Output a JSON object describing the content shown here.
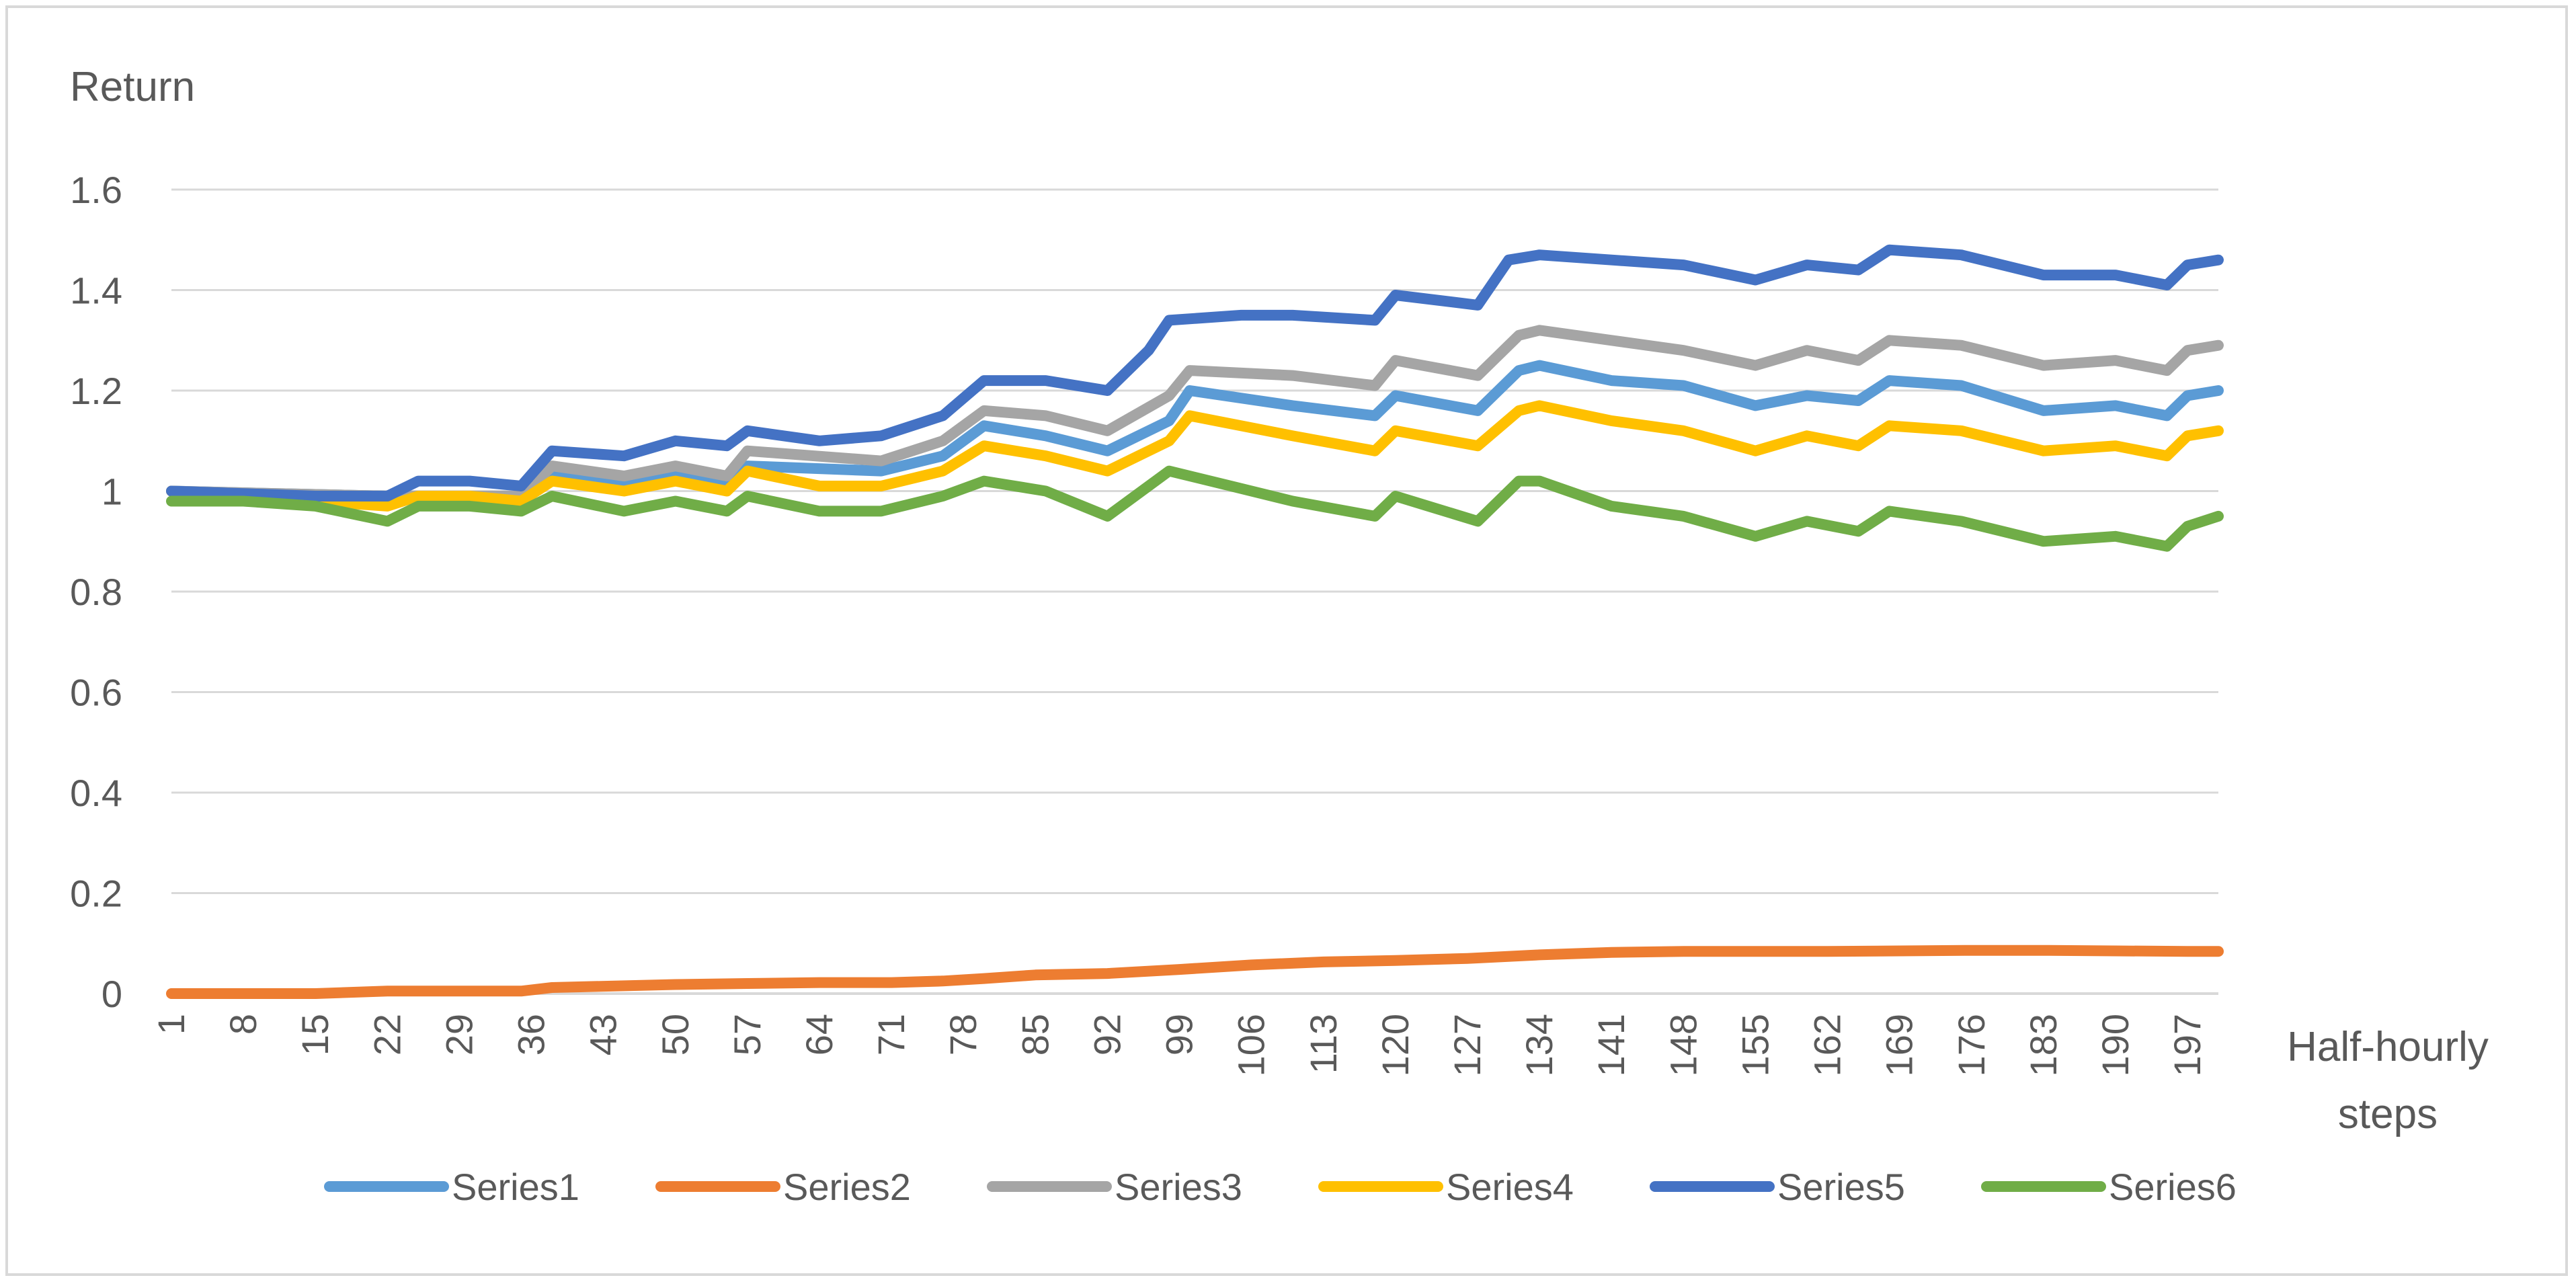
{
  "chart_data": {
    "type": "line",
    "title": "",
    "ylabel": "Return",
    "xlabel": "Half-hourly steps",
    "ylim": [
      0,
      1.6
    ],
    "yticks": [
      "0",
      "0.2",
      "0.4",
      "0.6",
      "0.8",
      "1",
      "1.2",
      "1.4",
      "1.6"
    ],
    "xticks": [
      "1",
      "8",
      "15",
      "22",
      "29",
      "36",
      "43",
      "50",
      "57",
      "64",
      "71",
      "78",
      "85",
      "92",
      "99",
      "106",
      "113",
      "120",
      "127",
      "134",
      "141",
      "148",
      "155",
      "162",
      "169",
      "176",
      "183",
      "190",
      "197"
    ],
    "xlim": [
      1,
      200
    ],
    "grid": true,
    "legend_position": "bottom",
    "series": [
      {
        "name": "Series1",
        "color": "#5b9bd5",
        "points": [
          [
            1,
            1.0
          ],
          [
            22,
            0.99
          ],
          [
            30,
            0.99
          ],
          [
            35,
            0.99
          ],
          [
            38,
            1.03
          ],
          [
            45,
            1.02
          ],
          [
            50,
            1.03
          ],
          [
            55,
            1.02
          ],
          [
            57,
            1.05
          ],
          [
            70,
            1.04
          ],
          [
            76,
            1.07
          ],
          [
            80,
            1.13
          ],
          [
            86,
            1.11
          ],
          [
            92,
            1.08
          ],
          [
            98,
            1.14
          ],
          [
            100,
            1.2
          ],
          [
            110,
            1.17
          ],
          [
            118,
            1.15
          ],
          [
            120,
            1.19
          ],
          [
            128,
            1.16
          ],
          [
            132,
            1.24
          ],
          [
            134,
            1.25
          ],
          [
            141,
            1.22
          ],
          [
            148,
            1.21
          ],
          [
            155,
            1.17
          ],
          [
            160,
            1.19
          ],
          [
            165,
            1.18
          ],
          [
            168,
            1.22
          ],
          [
            175,
            1.21
          ],
          [
            183,
            1.16
          ],
          [
            190,
            1.17
          ],
          [
            195,
            1.15
          ],
          [
            197,
            1.19
          ],
          [
            200,
            1.2
          ]
        ]
      },
      {
        "name": "Series2",
        "color": "#ed7d31",
        "points": [
          [
            1,
            0.0
          ],
          [
            15,
            0.0
          ],
          [
            22,
            0.005
          ],
          [
            35,
            0.005
          ],
          [
            38,
            0.012
          ],
          [
            50,
            0.018
          ],
          [
            57,
            0.02
          ],
          [
            64,
            0.022
          ],
          [
            71,
            0.022
          ],
          [
            76,
            0.025
          ],
          [
            80,
            0.03
          ],
          [
            85,
            0.037
          ],
          [
            92,
            0.04
          ],
          [
            99,
            0.048
          ],
          [
            106,
            0.057
          ],
          [
            113,
            0.063
          ],
          [
            120,
            0.066
          ],
          [
            127,
            0.07
          ],
          [
            134,
            0.077
          ],
          [
            141,
            0.082
          ],
          [
            148,
            0.084
          ],
          [
            155,
            0.084
          ],
          [
            162,
            0.084
          ],
          [
            169,
            0.085
          ],
          [
            176,
            0.086
          ],
          [
            183,
            0.086
          ],
          [
            190,
            0.085
          ],
          [
            197,
            0.084
          ],
          [
            200,
            0.084
          ]
        ]
      },
      {
        "name": "Series3",
        "color": "#a5a5a5",
        "points": [
          [
            1,
            1.0
          ],
          [
            22,
            0.99
          ],
          [
            30,
            0.99
          ],
          [
            35,
            0.99
          ],
          [
            38,
            1.05
          ],
          [
            45,
            1.03
          ],
          [
            50,
            1.05
          ],
          [
            55,
            1.03
          ],
          [
            57,
            1.08
          ],
          [
            70,
            1.06
          ],
          [
            76,
            1.1
          ],
          [
            80,
            1.16
          ],
          [
            86,
            1.15
          ],
          [
            92,
            1.12
          ],
          [
            98,
            1.19
          ],
          [
            100,
            1.24
          ],
          [
            110,
            1.23
          ],
          [
            118,
            1.21
          ],
          [
            120,
            1.26
          ],
          [
            128,
            1.23
          ],
          [
            132,
            1.31
          ],
          [
            134,
            1.32
          ],
          [
            141,
            1.3
          ],
          [
            148,
            1.28
          ],
          [
            155,
            1.25
          ],
          [
            160,
            1.28
          ],
          [
            165,
            1.26
          ],
          [
            168,
            1.3
          ],
          [
            175,
            1.29
          ],
          [
            183,
            1.25
          ],
          [
            190,
            1.26
          ],
          [
            195,
            1.24
          ],
          [
            197,
            1.28
          ],
          [
            200,
            1.29
          ]
        ]
      },
      {
        "name": "Series4",
        "color": "#ffc000",
        "points": [
          [
            1,
            1.0
          ],
          [
            22,
            0.97
          ],
          [
            25,
            0.99
          ],
          [
            30,
            0.99
          ],
          [
            35,
            0.98
          ],
          [
            38,
            1.02
          ],
          [
            45,
            1.0
          ],
          [
            50,
            1.02
          ],
          [
            55,
            1.0
          ],
          [
            57,
            1.04
          ],
          [
            64,
            1.01
          ],
          [
            70,
            1.01
          ],
          [
            76,
            1.04
          ],
          [
            80,
            1.09
          ],
          [
            86,
            1.07
          ],
          [
            92,
            1.04
          ],
          [
            98,
            1.1
          ],
          [
            100,
            1.15
          ],
          [
            110,
            1.11
          ],
          [
            118,
            1.08
          ],
          [
            120,
            1.12
          ],
          [
            128,
            1.09
          ],
          [
            132,
            1.16
          ],
          [
            134,
            1.17
          ],
          [
            141,
            1.14
          ],
          [
            148,
            1.12
          ],
          [
            155,
            1.08
          ],
          [
            160,
            1.11
          ],
          [
            165,
            1.09
          ],
          [
            168,
            1.13
          ],
          [
            175,
            1.12
          ],
          [
            183,
            1.08
          ],
          [
            190,
            1.09
          ],
          [
            195,
            1.07
          ],
          [
            197,
            1.11
          ],
          [
            200,
            1.12
          ]
        ]
      },
      {
        "name": "Series5",
        "color": "#4472c4",
        "points": [
          [
            1,
            1.0
          ],
          [
            15,
            0.99
          ],
          [
            22,
            0.99
          ],
          [
            25,
            1.02
          ],
          [
            30,
            1.02
          ],
          [
            35,
            1.01
          ],
          [
            38,
            1.08
          ],
          [
            45,
            1.07
          ],
          [
            50,
            1.1
          ],
          [
            55,
            1.09
          ],
          [
            57,
            1.12
          ],
          [
            64,
            1.1
          ],
          [
            70,
            1.11
          ],
          [
            76,
            1.15
          ],
          [
            80,
            1.22
          ],
          [
            86,
            1.22
          ],
          [
            92,
            1.2
          ],
          [
            96,
            1.28
          ],
          [
            98,
            1.34
          ],
          [
            105,
            1.35
          ],
          [
            110,
            1.35
          ],
          [
            118,
            1.34
          ],
          [
            120,
            1.39
          ],
          [
            128,
            1.37
          ],
          [
            131,
            1.46
          ],
          [
            134,
            1.47
          ],
          [
            141,
            1.46
          ],
          [
            148,
            1.45
          ],
          [
            155,
            1.42
          ],
          [
            160,
            1.45
          ],
          [
            165,
            1.44
          ],
          [
            168,
            1.48
          ],
          [
            175,
            1.47
          ],
          [
            183,
            1.43
          ],
          [
            190,
            1.43
          ],
          [
            195,
            1.41
          ],
          [
            197,
            1.45
          ],
          [
            200,
            1.46
          ]
        ]
      },
      {
        "name": "Series6",
        "color": "#70ad47",
        "points": [
          [
            1,
            0.98
          ],
          [
            8,
            0.98
          ],
          [
            15,
            0.97
          ],
          [
            22,
            0.94
          ],
          [
            25,
            0.97
          ],
          [
            30,
            0.97
          ],
          [
            35,
            0.96
          ],
          [
            38,
            0.99
          ],
          [
            45,
            0.96
          ],
          [
            50,
            0.98
          ],
          [
            55,
            0.96
          ],
          [
            57,
            0.99
          ],
          [
            64,
            0.96
          ],
          [
            70,
            0.96
          ],
          [
            76,
            0.99
          ],
          [
            80,
            1.02
          ],
          [
            86,
            1.0
          ],
          [
            92,
            0.95
          ],
          [
            94,
            0.98
          ],
          [
            98,
            1.04
          ],
          [
            104,
            1.01
          ],
          [
            110,
            0.98
          ],
          [
            118,
            0.95
          ],
          [
            120,
            0.99
          ],
          [
            128,
            0.94
          ],
          [
            132,
            1.02
          ],
          [
            134,
            1.02
          ],
          [
            141,
            0.97
          ],
          [
            148,
            0.95
          ],
          [
            155,
            0.91
          ],
          [
            160,
            0.94
          ],
          [
            165,
            0.92
          ],
          [
            168,
            0.96
          ],
          [
            175,
            0.94
          ],
          [
            183,
            0.9
          ],
          [
            190,
            0.91
          ],
          [
            195,
            0.89
          ],
          [
            197,
            0.93
          ],
          [
            200,
            0.95
          ]
        ]
      }
    ]
  }
}
